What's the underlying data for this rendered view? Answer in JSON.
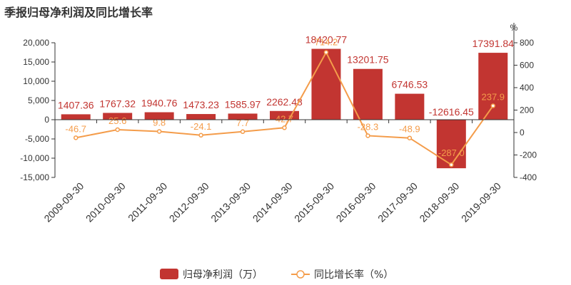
{
  "chart_data": {
    "type": "bar",
    "title": "季报归母净利润及同比增长率",
    "categories": [
      "2009-09-30",
      "2010-09-30",
      "2011-09-30",
      "2012-09-30",
      "2013-09-30",
      "2014-09-30",
      "2015-09-30",
      "2016-09-30",
      "2017-09-30",
      "2018-09-30",
      "2019-09-30"
    ],
    "series": [
      {
        "name": "归母净利润（万）",
        "type": "bar",
        "axis": "left",
        "color": "#c23531",
        "values": [
          1407.36,
          1767.32,
          1940.76,
          1473.23,
          1585.97,
          2262.48,
          18420.77,
          13201.75,
          6746.53,
          -12616.45,
          17391.84
        ],
        "labels": [
          "1407.36",
          "1767.32",
          "1940.76",
          "1473.23",
          "1585.97",
          "2262.48",
          "18420.77",
          "13201.75",
          "6746.53",
          "-12616.45",
          "17391.84"
        ]
      },
      {
        "name": "同比增长率（%）",
        "type": "line",
        "axis": "right",
        "color": "#f49c4a",
        "values": [
          -46.7,
          25.6,
          9.8,
          -24.1,
          7.7,
          42.7,
          714.2,
          -28.3,
          -48.9,
          -287.0,
          237.9
        ],
        "labels": [
          "-46.7",
          "25.6",
          "9.8",
          "-24.1",
          "7.7",
          "42.7",
          "714.2",
          "-28.3",
          "-48.9",
          "-287.0",
          "237.9"
        ]
      }
    ],
    "left_axis": {
      "ticks": [
        "20,000",
        "15,000",
        "10,000",
        "5,000",
        "0",
        "-5,000",
        "-10,000",
        "-15,000"
      ],
      "ylim": [
        -15000,
        20000
      ]
    },
    "right_axis": {
      "unit": "%",
      "ticks": [
        "800",
        "600",
        "400",
        "200",
        "0",
        "-200",
        "-400"
      ],
      "ylim": [
        -400,
        800
      ]
    },
    "grid": false,
    "legend_position": "bottom-center"
  }
}
